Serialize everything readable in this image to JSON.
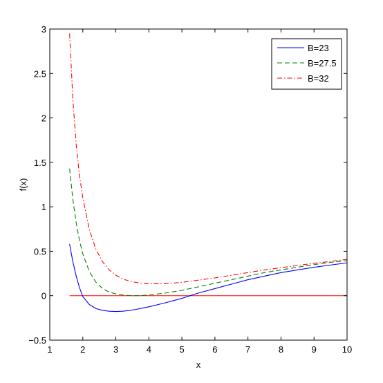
{
  "chart_data": {
    "type": "line",
    "xlabel": "x",
    "ylabel": "f(x)",
    "xlim": [
      1,
      10
    ],
    "ylim": [
      -0.5,
      3
    ],
    "xticks": [
      "1",
      "2",
      "3",
      "4",
      "5",
      "6",
      "7",
      "8",
      "9",
      "10"
    ],
    "yticks": [
      "−0.5",
      "0",
      "0.5",
      "1",
      "1.5",
      "2",
      "2.5",
      "3"
    ],
    "grid": false,
    "legend_position": "top-right",
    "reference_line": {
      "y": 0,
      "x_range": [
        1.6,
        10
      ],
      "color": "#ff0000"
    },
    "series": [
      {
        "name": "B=23",
        "color": "#0000ff",
        "dash": "solid",
        "x": [
          1.6,
          1.7,
          1.8,
          1.9,
          2.0,
          2.2,
          2.4,
          2.6,
          2.8,
          3.0,
          3.2,
          3.4,
          3.6,
          3.8,
          4.0,
          4.5,
          5.0,
          5.5,
          6.0,
          6.5,
          7.0,
          7.5,
          8.0,
          8.5,
          9.0,
          9.5,
          10.0
        ],
        "y": [
          0.58,
          0.38,
          0.22,
          0.09,
          -0.01,
          -0.1,
          -0.145,
          -0.165,
          -0.175,
          -0.178,
          -0.175,
          -0.167,
          -0.155,
          -0.14,
          -0.125,
          -0.08,
          -0.03,
          0.03,
          0.08,
          0.13,
          0.18,
          0.22,
          0.26,
          0.29,
          0.32,
          0.345,
          0.37
        ]
      },
      {
        "name": "B=27.5",
        "color": "#008000",
        "dash": "dashed",
        "x": [
          1.6,
          1.7,
          1.8,
          1.9,
          2.0,
          2.2,
          2.4,
          2.6,
          2.8,
          3.0,
          3.2,
          3.4,
          3.6,
          3.8,
          4.0,
          4.5,
          5.0,
          5.5,
          6.0,
          6.5,
          7.0,
          7.5,
          8.0,
          8.5,
          9.0,
          9.5,
          10.0
        ],
        "y": [
          1.43,
          1.08,
          0.82,
          0.62,
          0.47,
          0.27,
          0.15,
          0.08,
          0.04,
          0.02,
          0.008,
          0.002,
          0.0,
          0.002,
          0.008,
          0.03,
          0.06,
          0.1,
          0.14,
          0.18,
          0.22,
          0.26,
          0.29,
          0.32,
          0.35,
          0.375,
          0.395
        ]
      },
      {
        "name": "B=32",
        "color": "#ff0000",
        "dash": "dashdot",
        "x": [
          1.6,
          1.7,
          1.8,
          1.9,
          2.0,
          2.2,
          2.4,
          2.6,
          2.8,
          3.0,
          3.2,
          3.4,
          3.6,
          3.8,
          4.0,
          4.3,
          4.6,
          5.0,
          5.5,
          6.0,
          6.5,
          7.0,
          7.5,
          8.0,
          8.5,
          9.0,
          9.5,
          10.0
        ],
        "y": [
          2.95,
          2.2,
          1.7,
          1.35,
          1.1,
          0.74,
          0.52,
          0.38,
          0.29,
          0.23,
          0.19,
          0.165,
          0.15,
          0.14,
          0.135,
          0.133,
          0.137,
          0.15,
          0.175,
          0.2,
          0.23,
          0.26,
          0.29,
          0.315,
          0.34,
          0.365,
          0.385,
          0.41
        ]
      }
    ]
  }
}
